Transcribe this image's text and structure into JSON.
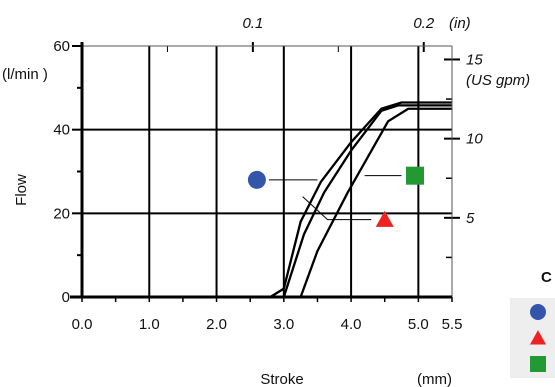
{
  "chart_data": {
    "type": "line",
    "xlabel": "Stroke",
    "xunit": "(mm)",
    "ylabel": "Flow",
    "yunit": "(l/min )",
    "y2unit": "(US gpm)",
    "x2unit": "(in)",
    "xlim": [
      0.0,
      5.5
    ],
    "ylim": [
      0,
      60
    ],
    "x_ticks": [
      "0.0",
      "1.0",
      "2.0",
      "3.0",
      "4.0",
      "5.0",
      "5.5"
    ],
    "y_ticks": [
      "0",
      "20",
      "40",
      "60"
    ],
    "y2_ticks": [
      "5",
      "10",
      "15"
    ],
    "x2_ticks": [
      "0.1",
      "0.2"
    ],
    "grid": true,
    "series": [
      {
        "marker": "circle",
        "color": "#3355aa",
        "x": [
          0.0,
          2.8,
          3.0,
          3.25,
          3.55,
          4.0,
          4.45,
          4.75,
          5.5
        ],
        "y": [
          0,
          0,
          2,
          18,
          27.5,
          37,
          45,
          46.5,
          46.5
        ]
      },
      {
        "marker": "triangle",
        "color": "#ee2222",
        "x": [
          0.0,
          3.0,
          3.3,
          3.6,
          4.0,
          4.45,
          4.7,
          5.5
        ],
        "y": [
          0,
          0,
          15,
          25,
          35,
          44.5,
          45.8,
          45.8
        ]
      },
      {
        "marker": "square",
        "color": "#229933",
        "x": [
          0.0,
          3.25,
          3.5,
          3.95,
          4.55,
          4.85,
          5.5
        ],
        "y": [
          0,
          0,
          11,
          25,
          42,
          45,
          45
        ]
      }
    ],
    "legend_heading": "C",
    "legend": [
      {
        "marker": "circle",
        "color": "#3355aa"
      },
      {
        "marker": "triangle",
        "color": "#ee2222"
      },
      {
        "marker": "square",
        "color": "#229933"
      }
    ]
  }
}
